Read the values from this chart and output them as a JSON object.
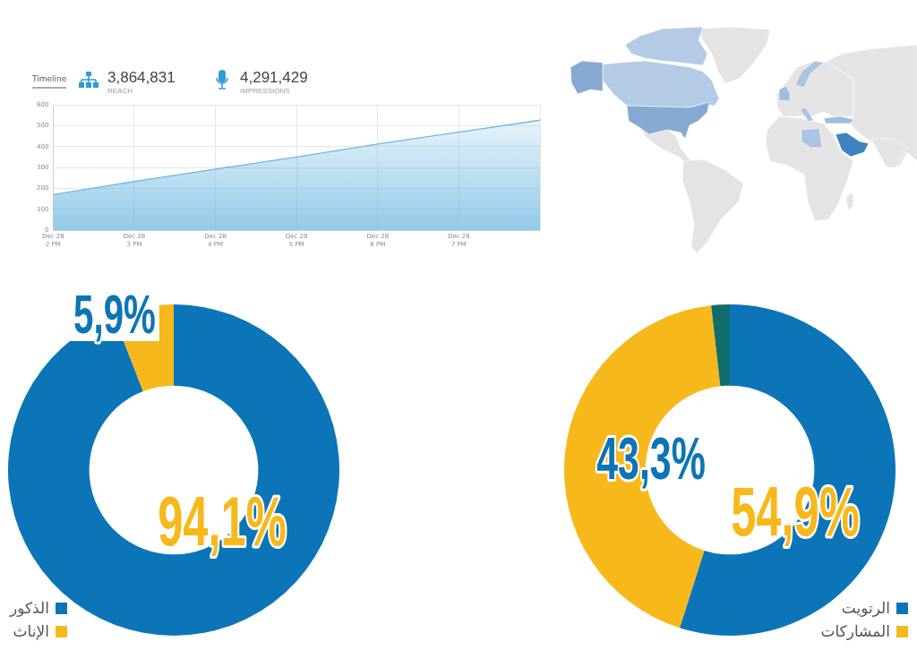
{
  "chart_data": [
    {
      "type": "area",
      "title": "Timeline",
      "annotations": [
        "3,864,831",
        "REACH",
        "4,291,429",
        "IMPRESSIONS"
      ],
      "categories": [
        "Dec 28\n2 PM",
        "Dec 28\n3 PM",
        "Dec 28\n4 PM",
        "Dec 28\n5 PM",
        "Dec 28\n6 PM",
        "Dec 28\n7 PM",
        null
      ],
      "values": [
        171,
        234,
        293,
        351,
        413,
        470,
        527
      ],
      "color": "#6db8e2",
      "ylim": [
        0,
        600
      ],
      "yticks": [
        0,
        100,
        200,
        300,
        400,
        500,
        600
      ],
      "grid": true
    },
    {
      "type": "donut",
      "categories": [
        "الذكور",
        "الإناث"
      ],
      "values": [
        94.1,
        5.9
      ],
      "colors": [
        "#0b75b7",
        "#f7b81c"
      ],
      "value_labels": [
        "94,1%",
        "5,9%"
      ],
      "legend": "bottom left"
    },
    {
      "type": "donut",
      "categories": [
        "الرتويت",
        "المشاركات",
        null
      ],
      "values": [
        54.9,
        43.3,
        1.8
      ],
      "colors": [
        "#0b75b7",
        "#f7b81c",
        "#0f6e6c"
      ],
      "value_labels": [
        "54,9%",
        "43,3%",
        null
      ],
      "legend": "bottom right"
    }
  ]
}
